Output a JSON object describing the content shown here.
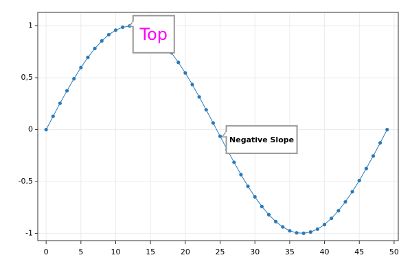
{
  "chart_data": {
    "type": "line",
    "x": [
      0,
      1,
      2,
      3,
      4,
      5,
      6,
      7,
      8,
      9,
      10,
      11,
      12,
      13,
      14,
      15,
      16,
      17,
      18,
      19,
      20,
      21,
      22,
      23,
      24,
      25,
      26,
      27,
      28,
      29,
      30,
      31,
      32,
      33,
      34,
      35,
      36,
      37,
      38,
      39,
      40,
      41,
      42,
      43,
      44,
      45,
      46,
      47,
      48,
      49
    ],
    "series": [
      {
        "color": "#2a7ab9",
        "values": [
          0,
          0.128,
          0.254,
          0.375,
          0.491,
          0.598,
          0.696,
          0.782,
          0.855,
          0.915,
          0.959,
          0.987,
          0.999,
          0.995,
          0.975,
          0.938,
          0.887,
          0.82,
          0.741,
          0.648,
          0.546,
          0.434,
          0.315,
          0.191,
          0.064,
          -0.064,
          -0.191,
          -0.315,
          -0.434,
          -0.546,
          -0.648,
          -0.741,
          -0.82,
          -0.887,
          -0.938,
          -0.975,
          -0.995,
          -0.999,
          -0.987,
          -0.959,
          -0.915,
          -0.855,
          -0.782,
          -0.696,
          -0.598,
          -0.491,
          -0.375,
          -0.254,
          -0.128,
          0
        ]
      }
    ],
    "xlim": [
      -1.2,
      50.6
    ],
    "ylim": [
      -1.07,
      1.13
    ],
    "xticks": [
      0,
      5,
      10,
      15,
      20,
      25,
      30,
      35,
      40,
      45,
      50
    ],
    "yticks": [
      {
        "value": -1,
        "label": "-1"
      },
      {
        "value": -0.5,
        "label": "-0,5"
      },
      0,
      {
        "value": 0.5,
        "label": "0,5"
      },
      1
    ],
    "grid": true,
    "annotations": [
      {
        "text": "Top",
        "x": 12,
        "y": 0.999,
        "color": "#ff00ff"
      },
      {
        "text": "Negative Slope",
        "x": 25.3,
        "y": -0.07,
        "color": "#000000"
      }
    ]
  }
}
